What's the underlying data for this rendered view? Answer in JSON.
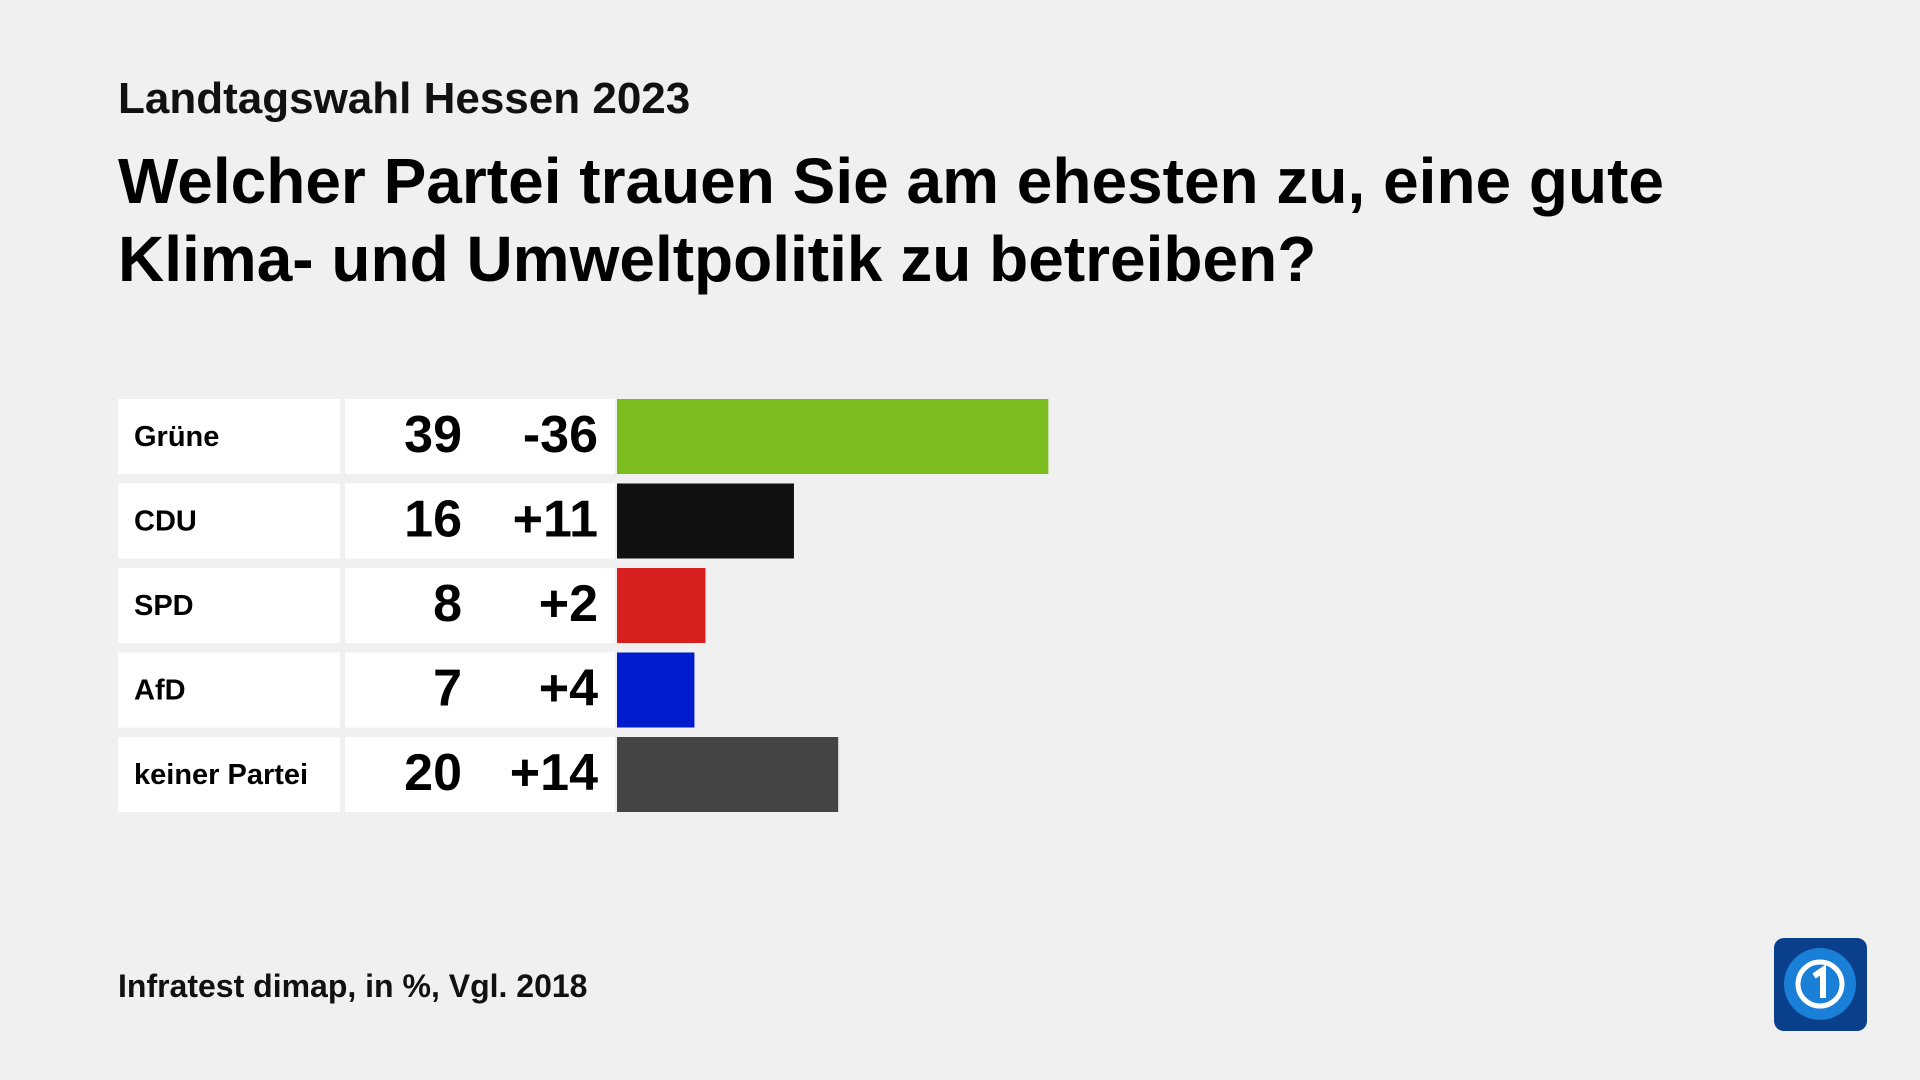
{
  "chart_data": {
    "type": "bar",
    "subtitle": "Landtagswahl Hessen 2023",
    "title": "Welcher Partei trauen Sie am ehesten zu, eine gute Klima- und Umweltpolitik zu betreiben?",
    "categories": [
      "Grüne",
      "CDU",
      "SPD",
      "AfD",
      "keiner Partei"
    ],
    "values": [
      39,
      16,
      8,
      7,
      20
    ],
    "changes": [
      -36,
      11,
      2,
      4,
      14
    ],
    "change_labels": [
      "-36",
      "+11",
      "+2",
      "+4",
      "+14"
    ],
    "colors": [
      "#7bbd1f",
      "#111111",
      "#d71f1f",
      "#001ccc",
      "#444444"
    ],
    "source": "Infratest dimap, in %, Vgl. 2018"
  }
}
